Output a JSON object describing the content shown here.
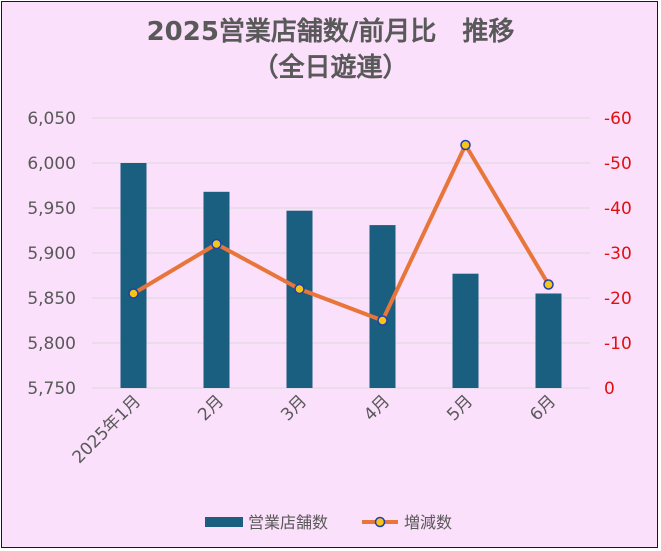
{
  "chart_data": {
    "type": "bar+line",
    "title": "2025営業店舗数/前月比　推移",
    "subtitle": "（全日遊連）",
    "categories": [
      "2025年1月",
      "2月",
      "3月",
      "4月",
      "5月",
      "6月"
    ],
    "series": [
      {
        "name": "営業店舗数",
        "type": "bar",
        "axis": "left",
        "values": [
          6000,
          5968,
          5947,
          5931,
          5877,
          5855
        ],
        "color": "#1a5e80"
      },
      {
        "name": "増減数",
        "type": "line",
        "axis": "right",
        "values": [
          -21,
          -32,
          -22,
          -15,
          -54,
          -23
        ],
        "color": "#e8753a",
        "marker_fill": "#f5c518",
        "marker_edge": "#1f3fb0"
      }
    ],
    "y_left": {
      "ylim": [
        5750,
        6050
      ],
      "ticks": [
        "5,750",
        "5,800",
        "5,850",
        "5,900",
        "5,950",
        "6,000",
        "6,050"
      ],
      "tick_color": "#595959"
    },
    "y_right": {
      "ylim": [
        0,
        -60
      ],
      "inverted": true,
      "ticks": [
        "0",
        "-10",
        "-20",
        "-30",
        "-40",
        "-50",
        "-60"
      ],
      "tick_color": "#e01010"
    },
    "grid": true,
    "legend_position": "bottom",
    "background": "#fbe0fb"
  }
}
